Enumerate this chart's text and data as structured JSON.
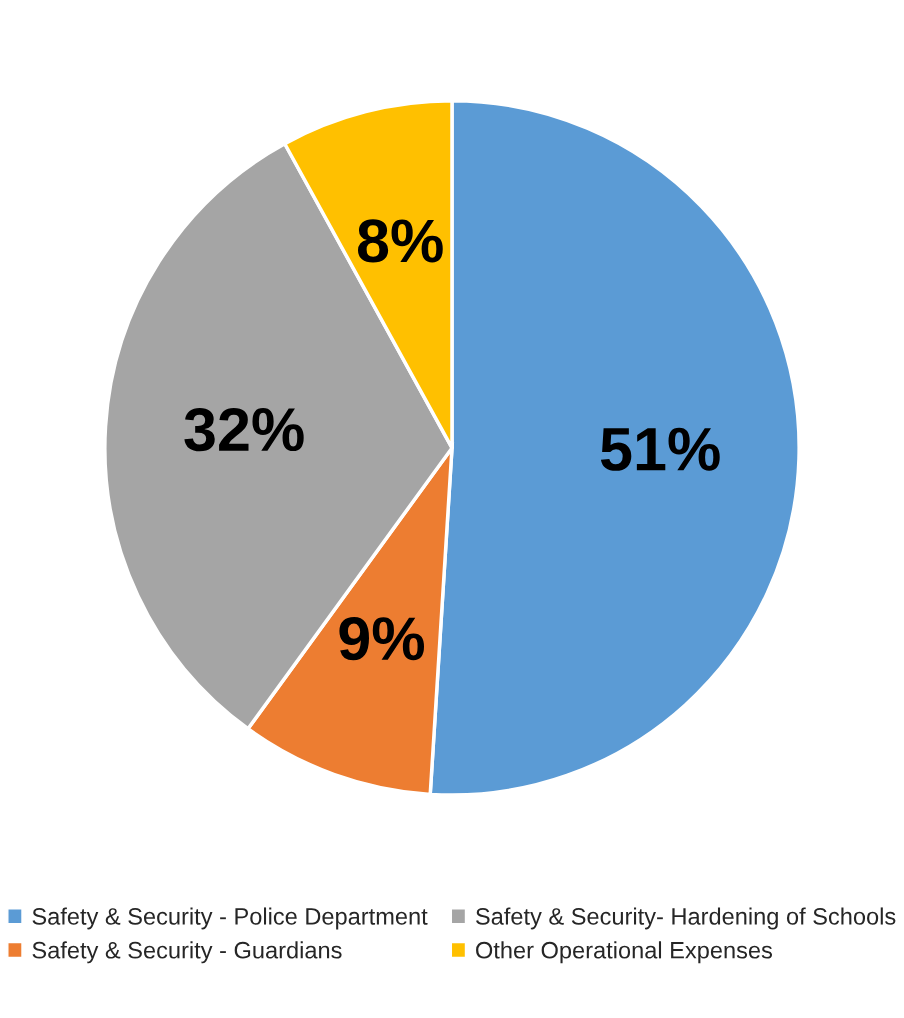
{
  "chart_data": {
    "type": "pie",
    "categories": [
      "Safety & Security - Police Department",
      "Safety & Security - Guardians",
      "Safety & Security- Hardening of Schools",
      "Other Operational Expenses"
    ],
    "values": [
      51,
      9,
      32,
      8
    ],
    "colors": [
      "#5b9bd5",
      "#ed7d31",
      "#a5a5a5",
      "#ffc000"
    ],
    "value_labels": [
      "51%",
      "9%",
      "32%",
      "8%"
    ],
    "legend": "bottom"
  }
}
